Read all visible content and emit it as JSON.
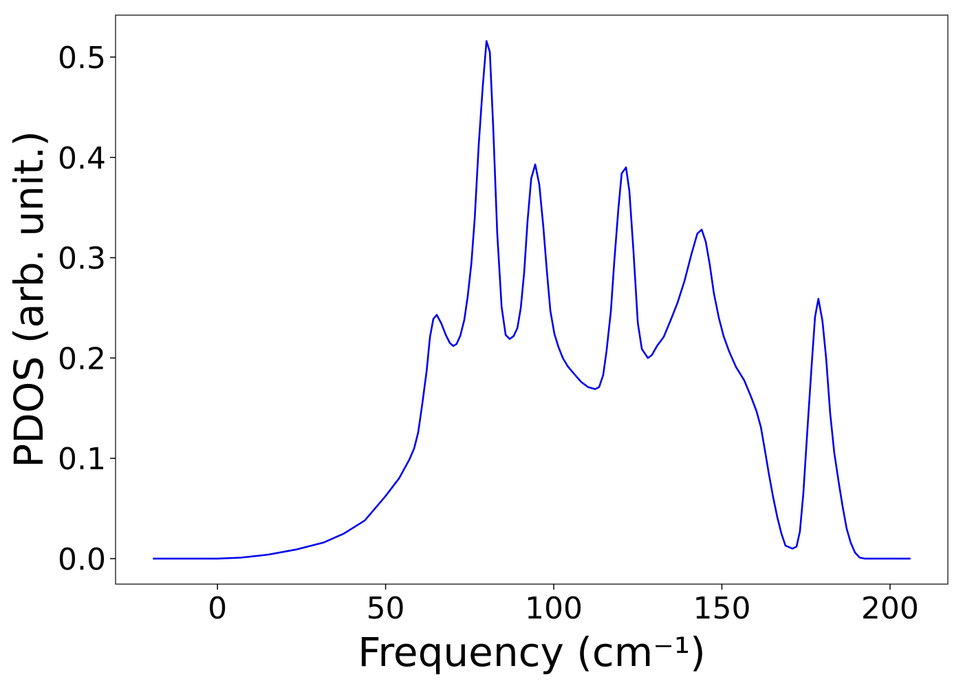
{
  "chart_data": {
    "type": "line",
    "xlabel": "Frequency (cm⁻¹)",
    "ylabel": "PDOS (arb. unit.)",
    "xlim": [
      -30.3,
      217.2
    ],
    "ylim": [
      -0.0254,
      0.5418
    ],
    "xticks": [
      0,
      50,
      100,
      150,
      200
    ],
    "yticks": [
      {
        "value": 0,
        "label": "0.0"
      },
      0.1,
      0.2,
      0.3,
      0.4,
      0.5
    ],
    "grid": false,
    "x": [
      -19.2,
      0,
      7.0,
      15.1,
      23.3,
      31.5,
      37.6,
      43.8,
      49.9,
      54.0,
      57.1,
      58.5,
      59.7,
      60.9,
      62.2,
      63.2,
      64.2,
      65.2,
      66.5,
      67.9,
      69.1,
      70.1,
      71.1,
      72.2,
      73.4,
      74.4,
      75.5,
      76.5,
      77.7,
      78.9,
      80.0,
      81.0,
      82.0,
      83.2,
      84.5,
      85.7,
      86.9,
      88.1,
      89.2,
      90.2,
      91.2,
      92.2,
      93.3,
      94.5,
      95.7,
      96.9,
      98.0,
      99.0,
      100.2,
      101.4,
      102.7,
      104.1,
      106.1,
      108.2,
      110.2,
      112.3,
      113.5,
      114.7,
      115.7,
      117.0,
      118.0,
      119.2,
      120.2,
      121.5,
      122.5,
      123.7,
      125.0,
      126.2,
      128.0,
      129.2,
      130.7,
      132.7,
      134.8,
      136.8,
      138.9,
      140.9,
      142.7,
      144.0,
      145.2,
      146.4,
      147.6,
      149.1,
      150.5,
      152.1,
      154.2,
      156.6,
      158.6,
      160.3,
      161.6,
      162.8,
      164.0,
      165.2,
      166.5,
      167.7,
      168.9,
      171.0,
      172.2,
      173.2,
      174.2,
      175.5,
      176.7,
      177.7,
      178.7,
      179.9,
      181.0,
      182.2,
      183.4,
      184.7,
      185.9,
      187.1,
      188.3,
      189.6,
      191.0,
      192.6,
      206.1
    ],
    "series": [
      {
        "name": "PDOS",
        "color": "#0000ee",
        "values": [
          0,
          0,
          0.001,
          0.004,
          0.009,
          0.016,
          0.025,
          0.038,
          0.062,
          0.08,
          0.099,
          0.11,
          0.126,
          0.154,
          0.187,
          0.221,
          0.239,
          0.243,
          0.235,
          0.223,
          0.215,
          0.212,
          0.214,
          0.222,
          0.238,
          0.261,
          0.294,
          0.339,
          0.413,
          0.471,
          0.516,
          0.505,
          0.43,
          0.324,
          0.251,
          0.223,
          0.219,
          0.222,
          0.23,
          0.25,
          0.285,
          0.336,
          0.379,
          0.393,
          0.373,
          0.331,
          0.285,
          0.247,
          0.224,
          0.211,
          0.2,
          0.192,
          0.184,
          0.176,
          0.171,
          0.169,
          0.171,
          0.183,
          0.207,
          0.247,
          0.296,
          0.348,
          0.384,
          0.39,
          0.366,
          0.307,
          0.235,
          0.209,
          0.2,
          0.203,
          0.212,
          0.221,
          0.238,
          0.255,
          0.277,
          0.303,
          0.324,
          0.328,
          0.316,
          0.293,
          0.265,
          0.24,
          0.222,
          0.207,
          0.191,
          0.178,
          0.162,
          0.147,
          0.131,
          0.108,
          0.084,
          0.062,
          0.041,
          0.025,
          0.013,
          0.01,
          0.012,
          0.027,
          0.064,
          0.132,
          0.193,
          0.241,
          0.259,
          0.237,
          0.2,
          0.145,
          0.106,
          0.077,
          0.052,
          0.03,
          0.016,
          0.006,
          0.001,
          0,
          0
        ]
      }
    ]
  }
}
